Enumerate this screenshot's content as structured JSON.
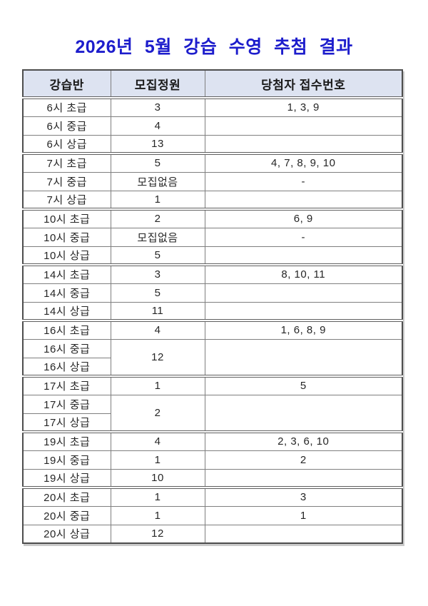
{
  "page": {
    "title": "2026년 5월 강습 수영 추첨 결과",
    "title_color": "#1d1dcc",
    "background_color": "#ffffff"
  },
  "table": {
    "headers": [
      "강습반",
      "모집정원",
      "당첨자 접수번호"
    ],
    "header_bg": "#dde3f1",
    "border_color": "#7f7f7f",
    "rows": [
      {
        "cells": [
          "6시 초급",
          "3",
          "1, 3, 9"
        ]
      },
      {
        "cells": [
          "6시 중급",
          "4",
          ""
        ]
      },
      {
        "cells": [
          "6시 상급",
          "13",
          ""
        ],
        "group_end": true
      },
      {
        "cells": [
          "7시 초급",
          "5",
          "4, 7, 8, 9, 10"
        ]
      },
      {
        "cells": [
          "7시 중급",
          "모집없음",
          "-"
        ]
      },
      {
        "cells": [
          "7시 상급",
          "1",
          ""
        ],
        "group_end": true
      },
      {
        "cells": [
          "10시 초급",
          "2",
          "6, 9"
        ]
      },
      {
        "cells": [
          "10시 중급",
          "모집없음",
          "-"
        ]
      },
      {
        "cells": [
          "10시 상급",
          "5",
          ""
        ],
        "group_end": true
      },
      {
        "cells": [
          "14시 초급",
          "3",
          "8, 10, 11"
        ]
      },
      {
        "cells": [
          "14시 중급",
          "5",
          ""
        ]
      },
      {
        "cells": [
          "14시 상급",
          "11",
          ""
        ],
        "group_end": true
      },
      {
        "cells": [
          "16시 초급",
          "4",
          "1, 6, 8, 9"
        ]
      },
      {
        "cells": [
          "16시 중급",
          {
            "t": "12",
            "rowspan": 2
          },
          {
            "t": "",
            "rowspan": 2
          }
        ]
      },
      {
        "cells": [
          "16시 상급"
        ],
        "group_end": true
      },
      {
        "cells": [
          "17시 초급",
          "1",
          "5"
        ]
      },
      {
        "cells": [
          "17시 중급",
          {
            "t": "2",
            "rowspan": 2
          },
          {
            "t": "",
            "rowspan": 2
          }
        ]
      },
      {
        "cells": [
          "17시 상급"
        ],
        "group_end": true
      },
      {
        "cells": [
          "19시 초급",
          "4",
          "2, 3, 6, 10"
        ]
      },
      {
        "cells": [
          "19시 중급",
          "1",
          "2"
        ]
      },
      {
        "cells": [
          "19시 상급",
          "10",
          ""
        ],
        "group_end": true
      },
      {
        "cells": [
          "20시 초급",
          "1",
          "3"
        ]
      },
      {
        "cells": [
          "20시 중급",
          "1",
          "1"
        ]
      },
      {
        "cells": [
          "20시 상급",
          "12",
          ""
        ]
      }
    ]
  }
}
